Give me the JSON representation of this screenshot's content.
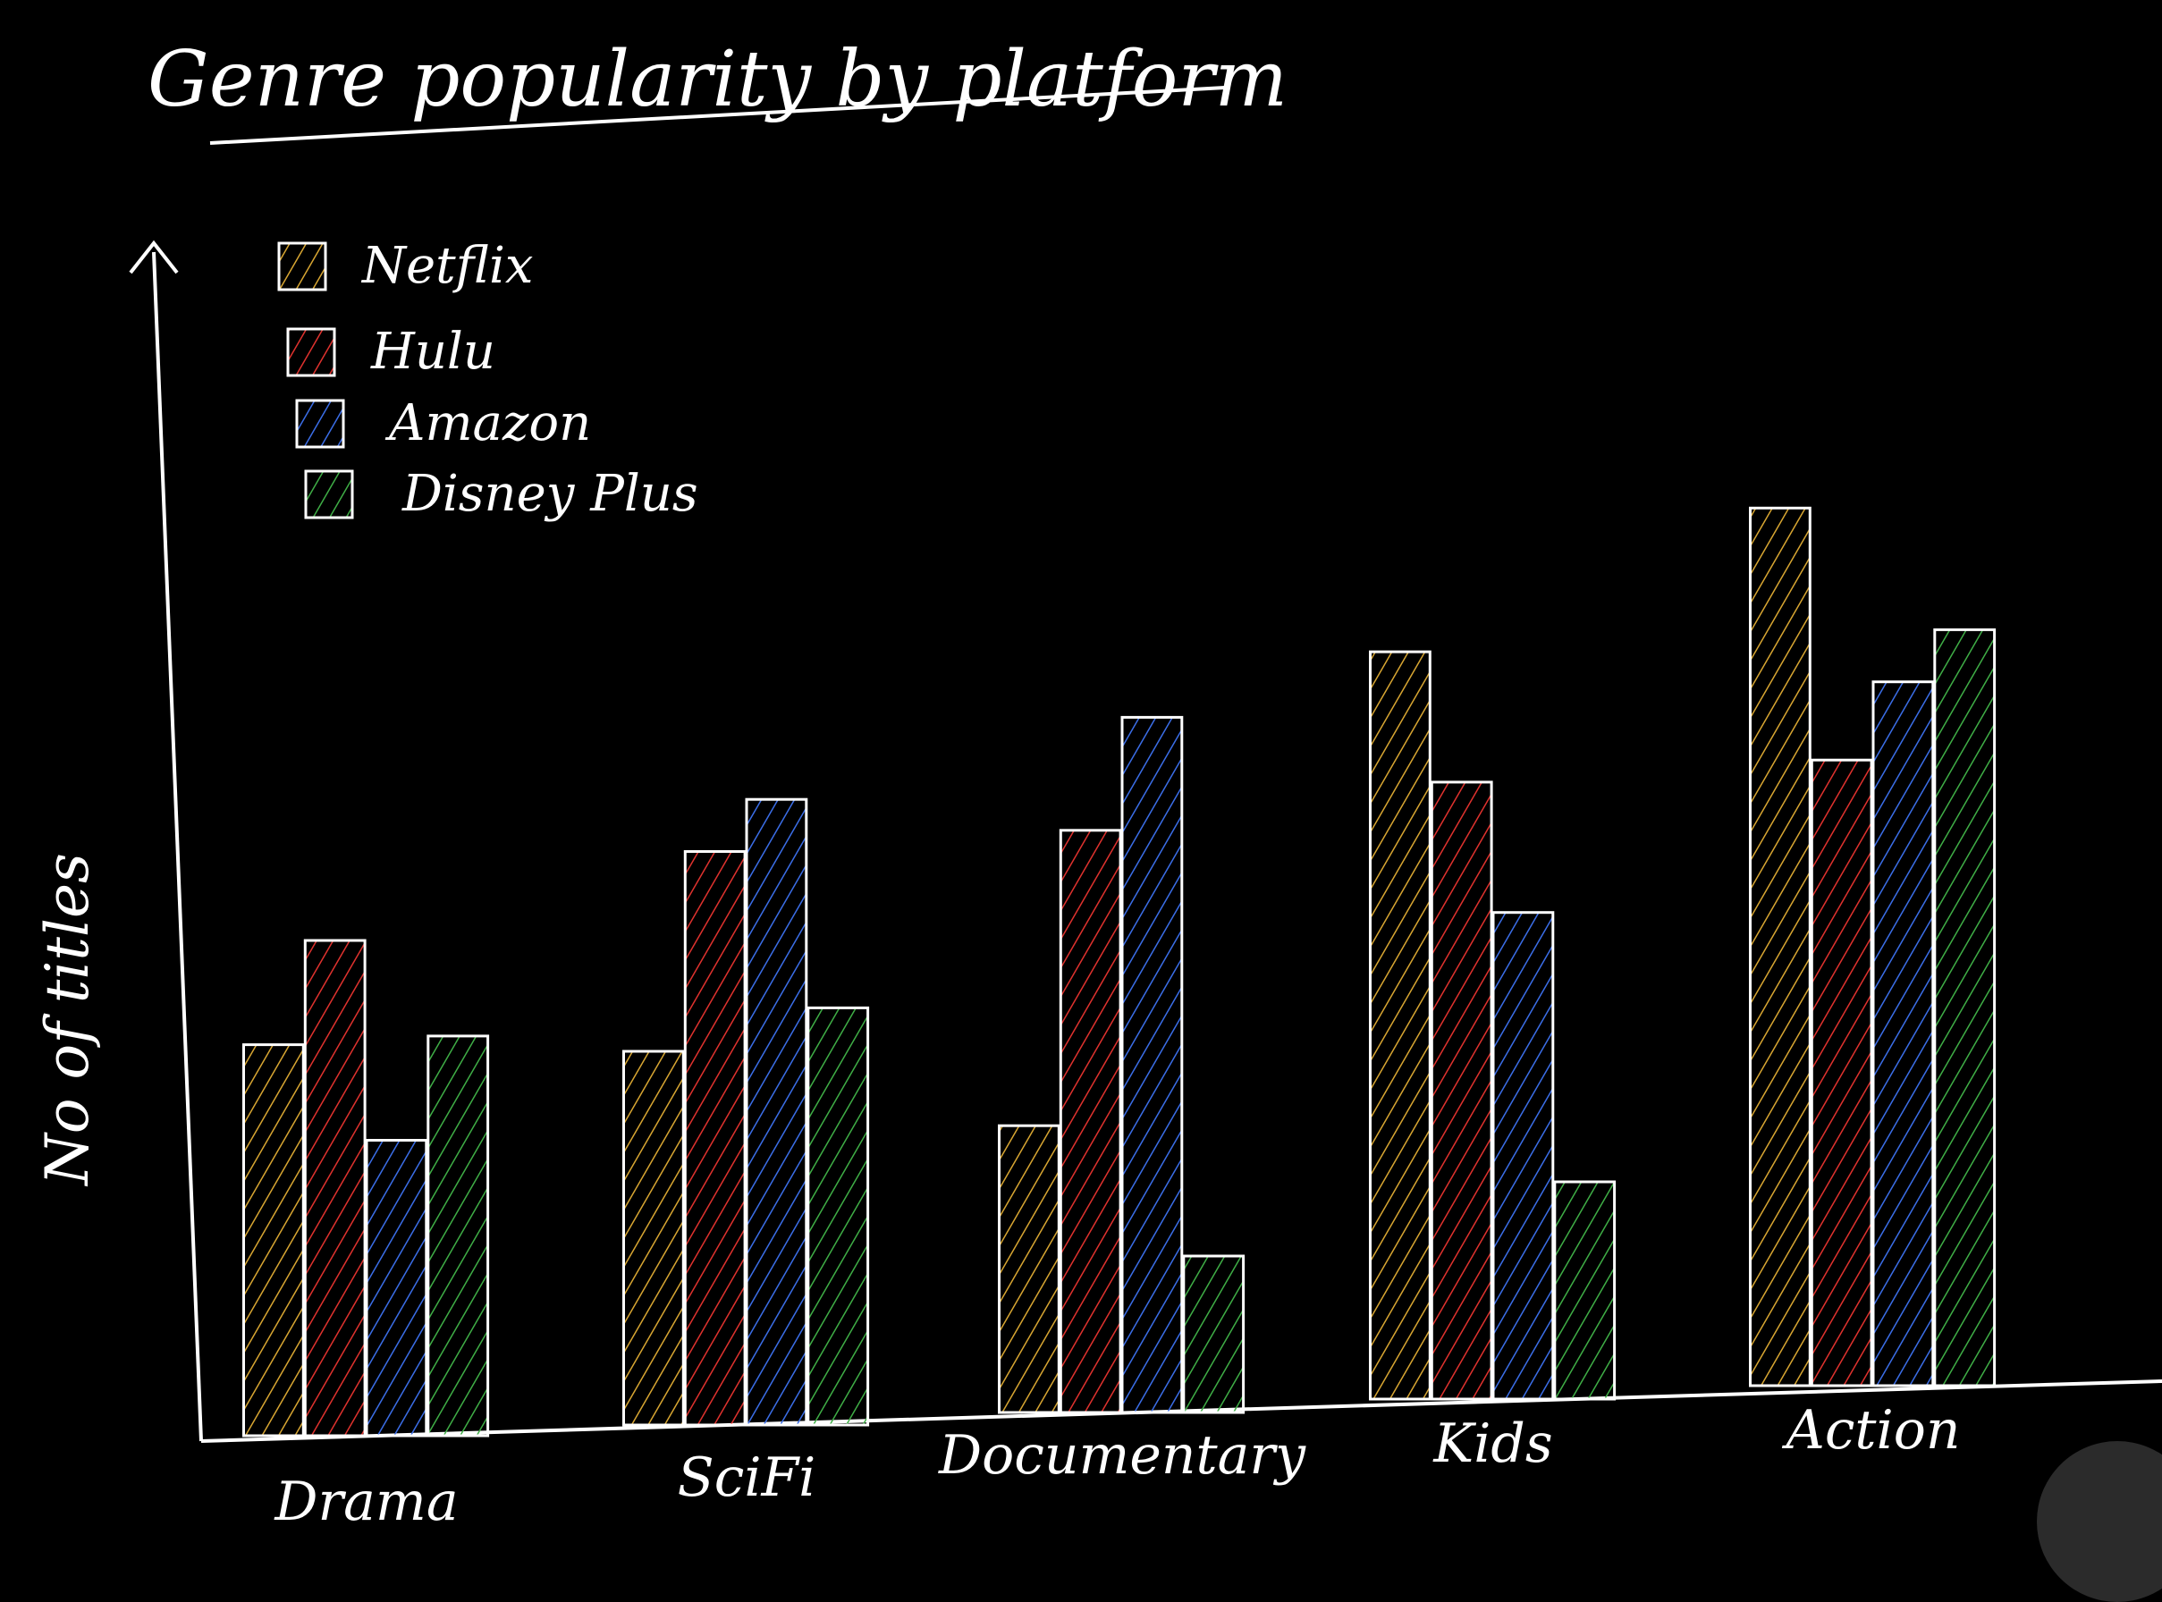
{
  "chart_data": {
    "type": "bar",
    "title": "Genre popularity by platform",
    "ylabel": "No of titles",
    "xlabel": "",
    "categories": [
      "Drama",
      "SciFi",
      "Documentary",
      "Kids",
      "Action"
    ],
    "series": [
      {
        "name": "Netflix",
        "color": "#d8a632",
        "values": [
          45,
          43,
          33,
          86,
          101
        ]
      },
      {
        "name": "Hulu",
        "color": "#e0322e",
        "values": [
          57,
          66,
          67,
          71,
          72
        ]
      },
      {
        "name": "Amazon",
        "color": "#3b6ee8",
        "values": [
          34,
          72,
          80,
          56,
          81
        ]
      },
      {
        "name": "Disney Plus",
        "color": "#3fae46",
        "values": [
          46,
          48,
          18,
          25,
          87
        ]
      }
    ],
    "ylim": [
      0,
      110
    ],
    "grid": false,
    "legend": "top-left"
  }
}
